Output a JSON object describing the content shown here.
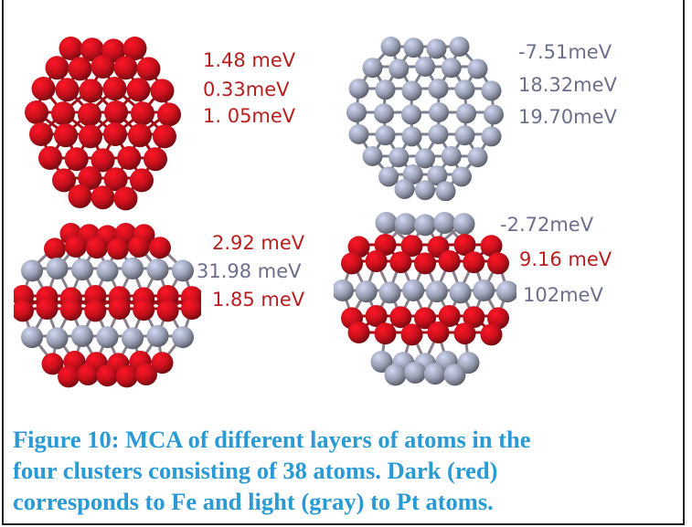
{
  "figure": {
    "clusters": [
      {
        "composition": "all-Fe",
        "mca": [
          "1.48 meV",
          "0.33meV",
          "1. 05meV"
        ],
        "colors": [
          "red",
          "red",
          "red"
        ]
      },
      {
        "composition": "all-Pt",
        "mca": [
          "-7.51meV",
          "18.32meV",
          "19.70meV"
        ],
        "colors": [
          "gray",
          "gray",
          "gray"
        ]
      },
      {
        "composition": "Fe-outer-Pt-layers",
        "mca": [
          "2.92 meV",
          "31.98 meV",
          "1.85 meV"
        ],
        "colors": [
          "red",
          "gray",
          "red"
        ]
      },
      {
        "composition": "Pt-outer-Fe-layers",
        "mca": [
          "-2.72meV",
          "9.16 meV",
          "102meV"
        ],
        "colors": [
          "gray",
          "red",
          "gray"
        ]
      }
    ],
    "atom_colors": {
      "fe": "#c8101c",
      "pt": "#9aa0b4"
    },
    "caption_lines": [
      "Figure 10: MCA of different layers of atoms in the",
      "four clusters consisting of 38 atoms. Dark (red)",
      "corresponds to Fe and light (gray) to Pt atoms."
    ]
  }
}
